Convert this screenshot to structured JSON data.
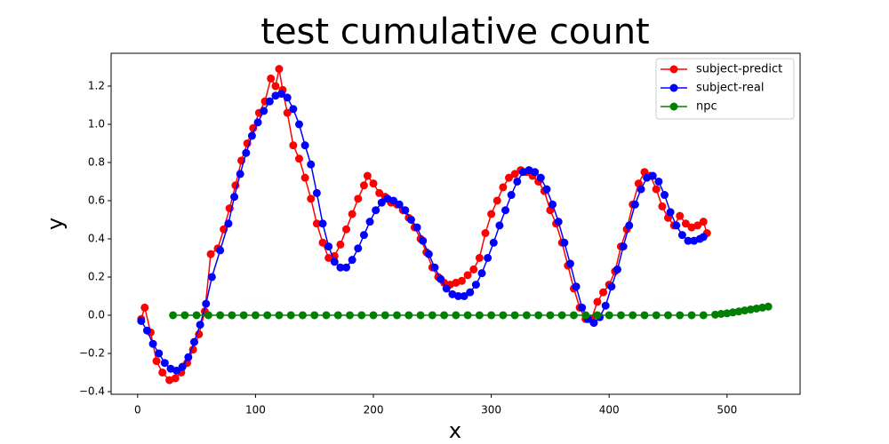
{
  "chart_data": {
    "type": "line",
    "title": "test cumulative count",
    "x_label": "x",
    "y_label": "y",
    "xlim": [
      -22.5,
      562
    ],
    "ylim": [
      -0.414,
      1.372
    ],
    "xticks": [
      0,
      100,
      200,
      300,
      400,
      500
    ],
    "yticks": [
      {
        "value": -0.4,
        "label": "−0.4"
      },
      {
        "value": -0.2,
        "label": "−0.2"
      },
      {
        "value": 0,
        "label": "0.0"
      },
      {
        "value": 0.2,
        "label": "0.2"
      },
      {
        "value": 0.4,
        "label": "0.4"
      },
      {
        "value": 0.6,
        "label": "0.6"
      },
      {
        "value": 0.8,
        "label": "0.8"
      },
      {
        "value": 1.0,
        "label": "1.0"
      },
      {
        "value": 1.2,
        "label": "1.2"
      }
    ],
    "legend": "upper right",
    "series": [
      {
        "name": "subject-predict",
        "color": "#ff0000",
        "x": [
          3,
          6,
          11,
          16,
          21,
          27,
          32,
          37,
          42,
          47,
          52,
          57,
          62,
          68,
          73,
          78,
          83,
          88,
          93,
          98,
          103,
          108,
          113,
          117,
          120,
          123,
          127,
          132,
          137,
          142,
          147,
          152,
          157,
          162,
          167,
          172,
          177,
          182,
          187,
          192,
          195,
          200,
          205,
          210,
          215,
          220,
          225,
          230,
          235,
          240,
          245,
          250,
          255,
          260,
          265,
          270,
          275,
          280,
          285,
          290,
          295,
          300,
          305,
          310,
          315,
          320,
          325,
          330,
          335,
          340,
          345,
          350,
          355,
          360,
          365,
          370,
          375,
          380,
          385,
          390,
          395,
          400,
          405,
          410,
          415,
          420,
          425,
          430,
          435,
          440,
          445,
          450,
          455,
          460,
          465,
          470,
          475,
          480,
          483
        ],
        "values": [
          -0.02,
          0.04,
          -0.09,
          -0.24,
          -0.3,
          -0.34,
          -0.33,
          -0.3,
          -0.25,
          -0.18,
          -0.1,
          0.02,
          0.32,
          0.35,
          0.45,
          0.56,
          0.68,
          0.81,
          0.9,
          0.98,
          1.06,
          1.12,
          1.24,
          1.2,
          1.29,
          1.18,
          1.06,
          0.89,
          0.82,
          0.72,
          0.61,
          0.48,
          0.38,
          0.3,
          0.31,
          0.37,
          0.45,
          0.53,
          0.61,
          0.68,
          0.73,
          0.69,
          0.64,
          0.62,
          0.59,
          0.58,
          0.55,
          0.51,
          0.46,
          0.4,
          0.33,
          0.25,
          0.2,
          0.17,
          0.16,
          0.17,
          0.18,
          0.21,
          0.24,
          0.3,
          0.43,
          0.53,
          0.6,
          0.67,
          0.72,
          0.74,
          0.76,
          0.75,
          0.73,
          0.7,
          0.65,
          0.55,
          0.48,
          0.38,
          0.26,
          0.14,
          0.04,
          -0.02,
          -0.02,
          0.07,
          0.12,
          0.16,
          0.23,
          0.36,
          0.45,
          0.58,
          0.69,
          0.75,
          0.73,
          0.66,
          0.57,
          0.51,
          0.47,
          0.52,
          0.48,
          0.46,
          0.47,
          0.49,
          0.43
        ]
      },
      {
        "name": "subject-real",
        "color": "#0000ff",
        "x": [
          3,
          8,
          13,
          18,
          23,
          28,
          33,
          38,
          43,
          48,
          53,
          58,
          63,
          70,
          77,
          82,
          87,
          92,
          97,
          102,
          107,
          112,
          117,
          122,
          127,
          132,
          137,
          142,
          147,
          152,
          157,
          162,
          167,
          172,
          177,
          182,
          187,
          192,
          197,
          202,
          207,
          212,
          217,
          222,
          227,
          232,
          237,
          242,
          247,
          252,
          257,
          262,
          267,
          272,
          277,
          282,
          287,
          292,
          297,
          302,
          307,
          312,
          317,
          322,
          327,
          332,
          337,
          342,
          347,
          352,
          357,
          362,
          367,
          372,
          377,
          382,
          387,
          392,
          397,
          402,
          407,
          412,
          417,
          422,
          427,
          432,
          437,
          442,
          447,
          452,
          457,
          462,
          467,
          472,
          477,
          480
        ],
        "values": [
          -0.03,
          -0.08,
          -0.15,
          -0.2,
          -0.25,
          -0.28,
          -0.29,
          -0.27,
          -0.22,
          -0.14,
          -0.05,
          0.06,
          0.2,
          0.34,
          0.48,
          0.62,
          0.74,
          0.85,
          0.94,
          1.01,
          1.07,
          1.12,
          1.15,
          1.16,
          1.14,
          1.08,
          1.0,
          0.89,
          0.79,
          0.64,
          0.48,
          0.36,
          0.28,
          0.25,
          0.25,
          0.29,
          0.35,
          0.42,
          0.49,
          0.55,
          0.59,
          0.61,
          0.6,
          0.58,
          0.55,
          0.5,
          0.46,
          0.39,
          0.32,
          0.25,
          0.19,
          0.14,
          0.11,
          0.1,
          0.1,
          0.12,
          0.16,
          0.22,
          0.3,
          0.38,
          0.47,
          0.55,
          0.63,
          0.7,
          0.75,
          0.76,
          0.75,
          0.72,
          0.66,
          0.58,
          0.49,
          0.38,
          0.27,
          0.15,
          0.04,
          -0.02,
          -0.04,
          -0.01,
          0.05,
          0.15,
          0.24,
          0.36,
          0.47,
          0.58,
          0.66,
          0.72,
          0.73,
          0.7,
          0.63,
          0.54,
          0.47,
          0.42,
          0.39,
          0.39,
          0.4,
          0.41
        ]
      },
      {
        "name": "npc",
        "color": "#008000",
        "x": [
          30,
          40,
          50,
          60,
          70,
          80,
          90,
          100,
          110,
          120,
          130,
          140,
          150,
          160,
          170,
          180,
          190,
          200,
          210,
          220,
          230,
          240,
          250,
          260,
          270,
          280,
          290,
          300,
          310,
          320,
          330,
          340,
          350,
          360,
          370,
          380,
          390,
          400,
          410,
          420,
          430,
          440,
          450,
          460,
          470,
          480,
          490,
          495,
          500,
          505,
          510,
          515,
          520,
          525,
          530,
          535
        ],
        "values": [
          0,
          0,
          0,
          0,
          0,
          0,
          0,
          0,
          0,
          0,
          0,
          0,
          0,
          0,
          0,
          0,
          0,
          0,
          0,
          0,
          0,
          0,
          0,
          0,
          0,
          0,
          0,
          0,
          0,
          0,
          0,
          0,
          0,
          0,
          0,
          0,
          0,
          0,
          0,
          0,
          0,
          0,
          0,
          0,
          0,
          0,
          0.003,
          0.007,
          0.01,
          0.015,
          0.02,
          0.025,
          0.03,
          0.035,
          0.04,
          0.045
        ]
      }
    ]
  }
}
